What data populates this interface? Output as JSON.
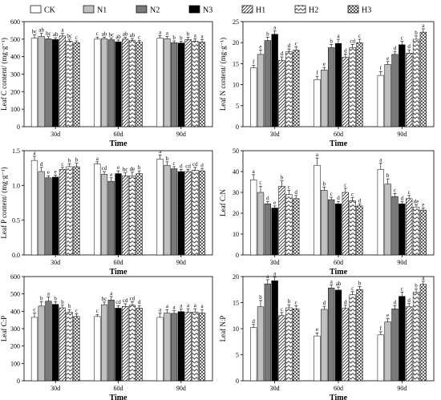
{
  "legend": {
    "items": [
      "CK",
      "N1",
      "N2",
      "N3",
      "H1",
      "H2",
      "H3"
    ]
  },
  "treatments": [
    {
      "name": "CK",
      "fill": "#ffffff",
      "pattern": "none"
    },
    {
      "name": "N1",
      "fill": "#c0c0c0",
      "pattern": "none"
    },
    {
      "name": "N2",
      "fill": "#7a7a7a",
      "pattern": "none"
    },
    {
      "name": "N3",
      "fill": "#000000",
      "pattern": "none"
    },
    {
      "name": "H1",
      "fill": "#ffffff",
      "pattern": "diag-right"
    },
    {
      "name": "H2",
      "fill": "#ffffff",
      "pattern": "chevron"
    },
    {
      "name": "H3",
      "fill": "#ffffff",
      "pattern": "crosshatch"
    }
  ],
  "chart_data": [
    {
      "type": "bar",
      "panel": "top-left",
      "ylabel": "Leaf C content/ (mg·g⁻¹)",
      "xlabel": "Time",
      "categories": [
        "30d",
        "60d",
        "90d"
      ],
      "ylim": [
        0,
        600
      ],
      "yticks": [
        0,
        100,
        200,
        300,
        400,
        500,
        600
      ],
      "series": [
        {
          "name": "CK",
          "values": [
            505,
            500,
            505
          ],
          "errors": [
            20,
            12,
            15
          ],
          "letters": [
            "bc",
            "c",
            "a"
          ]
        },
        {
          "name": "N1",
          "values": [
            515,
            503,
            503
          ],
          "errors": [
            18,
            8,
            12
          ],
          "letters": [
            "ab",
            "ab",
            "a"
          ]
        },
        {
          "name": "N2",
          "values": [
            502,
            497,
            480
          ],
          "errors": [
            12,
            10,
            10
          ],
          "letters": [
            "bc",
            "bc",
            "b"
          ]
        },
        {
          "name": "N3",
          "values": [
            498,
            485,
            478
          ],
          "errors": [
            10,
            10,
            10
          ],
          "letters": [
            "ab",
            "ab",
            "b"
          ]
        },
        {
          "name": "H1",
          "values": [
            518,
            500,
            498
          ],
          "errors": [
            15,
            10,
            12
          ],
          "letters": [
            "a",
            "ab",
            "b"
          ]
        },
        {
          "name": "H2",
          "values": [
            488,
            492,
            488
          ],
          "errors": [
            12,
            12,
            14
          ],
          "letters": [
            "bc",
            "ab",
            "a"
          ]
        },
        {
          "name": "H3",
          "values": [
            480,
            482,
            483
          ],
          "errors": [
            10,
            10,
            15
          ],
          "letters": [
            "c",
            "c",
            "a"
          ]
        }
      ]
    },
    {
      "type": "bar",
      "panel": "top-right",
      "ylabel": "Leaf N content/ (mg·g⁻¹)",
      "xlabel": "Time",
      "categories": [
        "30d",
        "60d",
        "90d"
      ],
      "ylim": [
        0,
        25
      ],
      "yticks": [
        0,
        5,
        10,
        15,
        20,
        25
      ],
      "series": [
        {
          "name": "CK",
          "values": [
            14.0,
            11.2,
            12.2
          ],
          "errors": [
            0.6,
            0.8,
            0.9
          ],
          "letters": [
            "f",
            "f",
            "f"
          ]
        },
        {
          "name": "N1",
          "values": [
            17.2,
            13.5,
            14.8
          ],
          "errors": [
            1.0,
            0.6,
            0.7
          ],
          "letters": [
            "e",
            "e",
            "e"
          ]
        },
        {
          "name": "N2",
          "values": [
            20.5,
            18.8,
            17.2
          ],
          "errors": [
            0.8,
            0.8,
            0.6
          ],
          "letters": [
            "b",
            "b",
            "d"
          ]
        },
        {
          "name": "N3",
          "values": [
            22.0,
            19.8,
            19.5
          ],
          "errors": [
            0.8,
            1.0,
            0.8
          ],
          "letters": [
            "a",
            "a",
            "c"
          ]
        },
        {
          "name": "H1",
          "values": [
            15.8,
            16.5,
            17.5
          ],
          "errors": [
            0.8,
            0.8,
            0.8
          ],
          "letters": [
            "d",
            "d",
            "d"
          ]
        },
        {
          "name": "H2",
          "values": [
            17.8,
            18.8,
            20.8
          ],
          "errors": [
            0.7,
            0.8,
            0.8
          ],
          "letters": [
            "d",
            "cd",
            "b"
          ]
        },
        {
          "name": "H3",
          "values": [
            18.2,
            20.0,
            22.5
          ],
          "errors": [
            0.8,
            0.8,
            0.8
          ],
          "letters": [
            "c",
            "c",
            "a"
          ]
        }
      ]
    },
    {
      "type": "bar",
      "panel": "middle-left",
      "ylabel": "Leaf P content/ (mg·g⁻¹)",
      "xlabel": "Time",
      "categories": [
        "30d",
        "60d",
        "90d"
      ],
      "ylim": [
        0,
        1.5
      ],
      "yticks": [
        0.0,
        0.5,
        1.0,
        1.5
      ],
      "series": [
        {
          "name": "CK",
          "values": [
            1.36,
            1.31,
            1.38
          ],
          "errors": [
            0.06,
            0.03,
            0.06
          ],
          "letters": [
            "a",
            "a",
            "a"
          ]
        },
        {
          "name": "N1",
          "values": [
            1.2,
            1.16,
            1.29
          ],
          "errors": [
            0.06,
            0.04,
            0.05
          ],
          "letters": [
            "d",
            "cd",
            "b"
          ]
        },
        {
          "name": "N2",
          "values": [
            1.11,
            1.06,
            1.24
          ],
          "errors": [
            0.03,
            0.05,
            0.03
          ],
          "letters": [
            "e",
            "e",
            "c"
          ]
        },
        {
          "name": "N3",
          "values": [
            1.12,
            1.17,
            1.2
          ],
          "errors": [
            0.03,
            0.04,
            0.03
          ],
          "letters": [
            "e",
            "e",
            "d"
          ]
        },
        {
          "name": "H1",
          "values": [
            1.23,
            1.14,
            1.2
          ],
          "errors": [
            0.03,
            0.04,
            0.03
          ],
          "letters": [
            "c",
            "bc",
            "cd"
          ]
        },
        {
          "name": "H2",
          "values": [
            1.27,
            1.14,
            1.22
          ],
          "errors": [
            0.04,
            0.05,
            0.04
          ],
          "letters": [
            "b",
            "de",
            "cd"
          ]
        },
        {
          "name": "H3",
          "values": [
            1.27,
            1.17,
            1.21
          ],
          "errors": [
            0.05,
            0.04,
            0.03
          ],
          "letters": [
            "b",
            "b",
            "d"
          ]
        }
      ]
    },
    {
      "type": "bar",
      "panel": "middle-right",
      "ylabel": "Leaf C:N",
      "xlabel": "Time",
      "categories": [
        "30d",
        "60d",
        "90d"
      ],
      "ylim": [
        0,
        50
      ],
      "yticks": [
        0,
        10,
        20,
        30,
        40,
        50
      ],
      "series": [
        {
          "name": "CK",
          "values": [
            36.0,
            43.0,
            41.0
          ],
          "errors": [
            2.5,
            3.5,
            3.0
          ],
          "letters": [
            "a",
            "a",
            "a"
          ]
        },
        {
          "name": "N1",
          "values": [
            30.0,
            31.0,
            34.0
          ],
          "errors": [
            3.0,
            1.5,
            2.5
          ],
          "letters": [
            "c",
            "b",
            "b"
          ]
        },
        {
          "name": "N2",
          "values": [
            24.5,
            26.5,
            28.0
          ],
          "errors": [
            1.0,
            1.2,
            1.5
          ],
          "letters": [
            "d",
            "c",
            "c"
          ]
        },
        {
          "name": "N3",
          "values": [
            22.5,
            24.5,
            24.5
          ],
          "errors": [
            1.0,
            1.2,
            1.0
          ],
          "letters": [
            "e",
            "d",
            "d"
          ]
        },
        {
          "name": "H1",
          "values": [
            33.0,
            30.0,
            27.0
          ],
          "errors": [
            2.5,
            2.0,
            1.5
          ],
          "letters": [
            "b",
            "c",
            "c"
          ]
        },
        {
          "name": "H2",
          "values": [
            29.0,
            26.0,
            23.0
          ],
          "errors": [
            2.0,
            1.5,
            1.0
          ],
          "letters": [
            "c",
            "c",
            "de"
          ]
        },
        {
          "name": "H3",
          "values": [
            27.0,
            23.5,
            21.5
          ],
          "errors": [
            1.5,
            1.0,
            1.0
          ],
          "letters": [
            "d",
            "d",
            "e"
          ]
        }
      ]
    },
    {
      "type": "bar",
      "panel": "bottom-left",
      "ylabel": "Leaf C:P",
      "xlabel": "Time",
      "categories": [
        "30d",
        "60d",
        "90d"
      ],
      "ylim": [
        0,
        600
      ],
      "yticks": [
        0,
        100,
        200,
        300,
        400,
        500,
        600
      ],
      "series": [
        {
          "name": "CK",
          "values": [
            365,
            370,
            365
          ],
          "errors": [
            25,
            12,
            25
          ],
          "letters": [
            "c",
            "c",
            "a"
          ]
        },
        {
          "name": "N1",
          "values": [
            430,
            438,
            390
          ],
          "errors": [
            25,
            15,
            20
          ],
          "letters": [
            "b",
            "bc",
            "a"
          ]
        },
        {
          "name": "N2",
          "values": [
            458,
            465,
            388
          ],
          "errors": [
            25,
            20,
            15
          ],
          "letters": [
            "a",
            "a",
            "a"
          ]
        },
        {
          "name": "N3",
          "values": [
            440,
            418,
            398
          ],
          "errors": [
            15,
            15,
            15
          ],
          "letters": [
            "b",
            "cd",
            "a"
          ]
        },
        {
          "name": "H1",
          "values": [
            420,
            428,
            395
          ],
          "errors": [
            15,
            15,
            20
          ],
          "letters": [
            "b",
            "cd",
            "a"
          ]
        },
        {
          "name": "H2",
          "values": [
            395,
            435,
            395
          ],
          "errors": [
            15,
            20,
            20
          ],
          "letters": [
            "b",
            "cd",
            "a"
          ]
        },
        {
          "name": "H3",
          "values": [
            370,
            418,
            390
          ],
          "errors": [
            15,
            15,
            20
          ],
          "letters": [
            "c",
            "d",
            "a"
          ]
        }
      ]
    },
    {
      "type": "bar",
      "panel": "bottom-right",
      "ylabel": "Leaf N:P",
      "xlabel": "Time",
      "categories": [
        "30d",
        "60d",
        "90d"
      ],
      "ylim": [
        0,
        20
      ],
      "yticks": [
        0,
        5,
        10,
        15,
        20
      ],
      "series": [
        {
          "name": "CK",
          "values": [
            10.2,
            8.6,
            8.8
          ],
          "errors": [
            0.6,
            0.6,
            0.6
          ],
          "letters": [
            "d",
            "e",
            "f"
          ]
        },
        {
          "name": "N1",
          "values": [
            14.2,
            13.7,
            11.3
          ],
          "errors": [
            1.2,
            0.6,
            0.6
          ],
          "letters": [
            "b",
            "d",
            "e"
          ]
        },
        {
          "name": "N2",
          "values": [
            18.6,
            17.8,
            13.8
          ],
          "errors": [
            0.8,
            0.6,
            0.6
          ],
          "letters": [
            "a",
            "a",
            "d"
          ]
        },
        {
          "name": "N3",
          "values": [
            19.2,
            17.4,
            16.2
          ],
          "errors": [
            0.7,
            0.6,
            0.8
          ],
          "letters": [
            "a",
            "ab",
            "c"
          ]
        },
        {
          "name": "H1",
          "values": [
            12.5,
            13.9,
            14.2
          ],
          "errors": [
            0.6,
            0.6,
            0.6
          ],
          "letters": [
            "c",
            "d",
            "d"
          ]
        },
        {
          "name": "H2",
          "values": [
            14.0,
            16.5,
            17.0
          ],
          "errors": [
            0.6,
            0.6,
            0.6
          ],
          "letters": [
            "b",
            "c",
            "b"
          ]
        },
        {
          "name": "H3",
          "values": [
            13.8,
            17.5,
            18.5
          ],
          "errors": [
            0.6,
            0.6,
            0.6
          ],
          "letters": [
            "c",
            "b",
            "a"
          ]
        }
      ]
    }
  ]
}
